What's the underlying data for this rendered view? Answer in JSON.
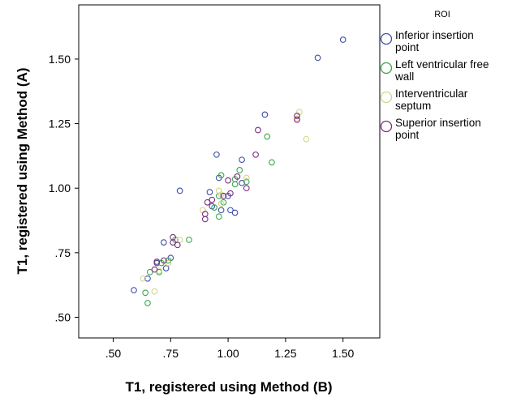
{
  "chart_data": {
    "type": "scatter",
    "xlabel": "T1, registered using Method (B)",
    "ylabel": "T1, registered using Method (A)",
    "xlim": [
      0.35,
      1.66
    ],
    "ylim": [
      0.42,
      1.71
    ],
    "x_ticks": [
      0.5,
      0.75,
      1.0,
      1.25,
      1.5
    ],
    "x_tick_labels": [
      ".50",
      ".75",
      "1.00",
      "1.25",
      "1.50"
    ],
    "y_ticks": [
      0.5,
      0.75,
      1.0,
      1.25,
      1.5
    ],
    "y_tick_labels": [
      ".50",
      ".75",
      "1.00",
      "1.25",
      "1.50"
    ],
    "grid": false,
    "marker": "open-circle",
    "legend": {
      "title": "ROI",
      "placement": "right",
      "entries": [
        {
          "label_lines": [
            "Inferior insertion",
            "point"
          ]
        },
        {
          "label_lines": [
            "Left ventricular free",
            "wall"
          ]
        },
        {
          "label_lines": [
            "Interventricular",
            "septum"
          ]
        },
        {
          "label_lines": [
            "Superior insertion",
            "point"
          ]
        }
      ]
    },
    "series": [
      {
        "name": "Inferior insertion point",
        "color": "#3f4fa8",
        "points": [
          [
            0.59,
            0.605
          ],
          [
            0.65,
            0.65
          ],
          [
            0.69,
            0.71
          ],
          [
            0.72,
            0.79
          ],
          [
            0.75,
            0.73
          ],
          [
            0.79,
            0.99
          ],
          [
            0.92,
            0.985
          ],
          [
            0.95,
            1.13
          ],
          [
            0.96,
            1.04
          ],
          [
            0.93,
            0.93
          ],
          [
            0.97,
            0.915
          ],
          [
            1.0,
            0.97
          ],
          [
            1.01,
            0.915
          ],
          [
            1.03,
            0.905
          ],
          [
            1.06,
            1.02
          ],
          [
            1.06,
            1.11
          ],
          [
            1.16,
            1.285
          ],
          [
            1.39,
            1.505
          ],
          [
            1.5,
            1.575
          ],
          [
            0.73,
            0.69
          ]
        ]
      },
      {
        "name": "Left ventricular free wall",
        "color": "#3aa84a",
        "points": [
          [
            0.65,
            0.555
          ],
          [
            0.64,
            0.595
          ],
          [
            0.66,
            0.675
          ],
          [
            0.7,
            0.675
          ],
          [
            0.71,
            0.71
          ],
          [
            0.74,
            0.72
          ],
          [
            0.77,
            0.8
          ],
          [
            0.83,
            0.8
          ],
          [
            0.94,
            0.925
          ],
          [
            0.96,
            0.89
          ],
          [
            0.96,
            0.97
          ],
          [
            0.97,
            1.05
          ],
          [
            0.98,
            0.945
          ],
          [
            1.03,
            1.035
          ],
          [
            1.05,
            1.07
          ],
          [
            1.08,
            1.025
          ],
          [
            1.17,
            1.2
          ],
          [
            1.19,
            1.1
          ],
          [
            1.03,
            1.015
          ]
        ]
      },
      {
        "name": "Interventricular septum",
        "color": "#d6d48a",
        "points": [
          [
            0.63,
            0.65
          ],
          [
            0.68,
            0.6
          ],
          [
            0.7,
            0.68
          ],
          [
            0.74,
            0.71
          ],
          [
            0.79,
            0.8
          ],
          [
            0.89,
            0.915
          ],
          [
            0.96,
            0.99
          ],
          [
            0.97,
            0.975
          ],
          [
            0.97,
            0.94
          ],
          [
            1.08,
            1.04
          ],
          [
            1.3,
            1.27
          ],
          [
            1.31,
            1.295
          ],
          [
            1.34,
            1.19
          ]
        ]
      },
      {
        "name": "Superior insertion point",
        "color": "#7a2a82",
        "points": [
          [
            0.68,
            0.685
          ],
          [
            0.69,
            0.715
          ],
          [
            0.72,
            0.72
          ],
          [
            0.76,
            0.81
          ],
          [
            0.76,
            0.79
          ],
          [
            0.78,
            0.78
          ],
          [
            0.9,
            0.88
          ],
          [
            0.9,
            0.9
          ],
          [
            0.91,
            0.945
          ],
          [
            0.93,
            0.955
          ],
          [
            0.98,
            0.97
          ],
          [
            1.0,
            1.03
          ],
          [
            1.01,
            0.98
          ],
          [
            1.04,
            1.045
          ],
          [
            1.08,
            1.0
          ],
          [
            1.12,
            1.13
          ],
          [
            1.13,
            1.225
          ],
          [
            1.3,
            1.28
          ],
          [
            1.3,
            1.265
          ]
        ]
      }
    ]
  }
}
